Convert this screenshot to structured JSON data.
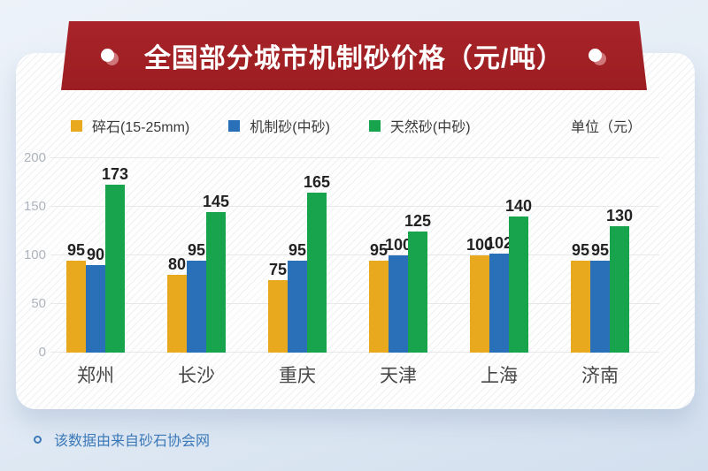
{
  "banner": {
    "title": "全国部分城市机制砂价格（元/吨）"
  },
  "legend": {
    "unit_label": "单位（元）"
  },
  "chart_data": {
    "type": "bar",
    "title": "全国部分城市机制砂价格（元/吨）",
    "categories": [
      "郑州",
      "长沙",
      "重庆",
      "天津",
      "上海",
      "济南"
    ],
    "series": [
      {
        "name": "碎石(15-25mm)",
        "color": "#e9a91f",
        "values": [
          95,
          80,
          75,
          95,
          100,
          95
        ]
      },
      {
        "name": "机制砂(中砂)",
        "color": "#2a70b8",
        "values": [
          90,
          95,
          95,
          100,
          102,
          95
        ]
      },
      {
        "name": "天然砂(中砂)",
        "color": "#17a44d",
        "values": [
          173,
          145,
          165,
          125,
          140,
          130
        ]
      }
    ],
    "y_ticks": [
      0,
      50,
      100,
      150,
      200
    ],
    "ylim": [
      0,
      200
    ],
    "grid": true,
    "legend_position": "top",
    "value_labels": true
  },
  "footer": {
    "note": "该数据由来自砂石协会网"
  },
  "colors": {
    "banner_red": "#a02024",
    "footer_blue": "#3b78b7",
    "axis_label_gray": "#aeb4bd"
  }
}
